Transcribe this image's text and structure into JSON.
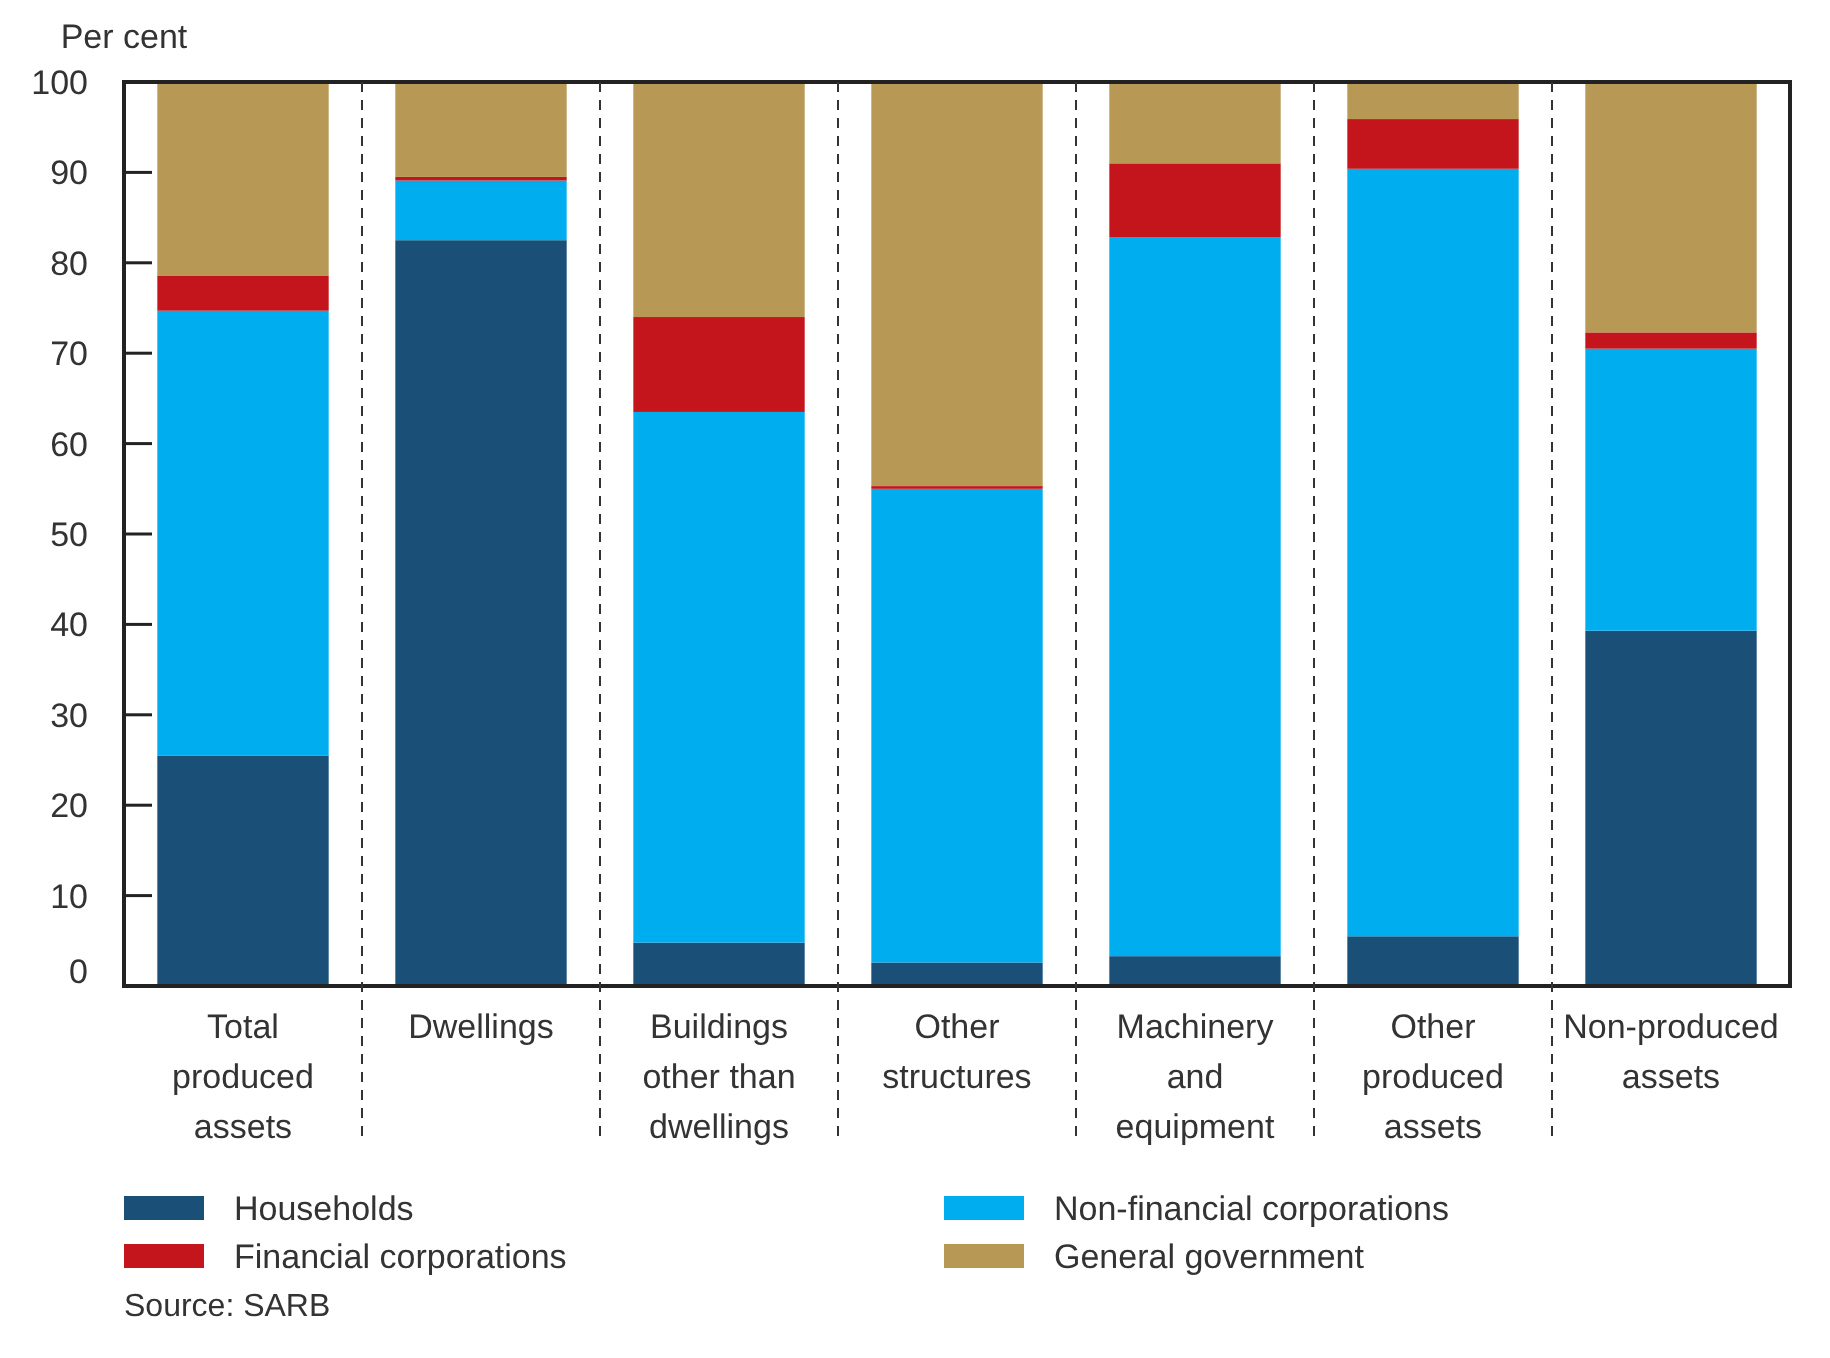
{
  "chart_data": {
    "type": "bar",
    "stacked": true,
    "ylabel": "Per cent",
    "categories": [
      "Total produced assets",
      "Dwellings",
      "Buildings other than dwellings",
      "Other structures",
      "Machinery and equipment",
      "Other produced assets",
      "Non-produced assets"
    ],
    "series": [
      {
        "name": "Households",
        "color": "#1a4f78",
        "values": [
          25.5,
          82.5,
          4.8,
          2.6,
          3.3,
          5.5,
          39.3
        ]
      },
      {
        "name": "Non-financial corporations",
        "color": "#00aeef",
        "values": [
          49.2,
          6.6,
          58.7,
          52.4,
          79.5,
          84.9,
          31.2
        ]
      },
      {
        "name": "Financial corporations",
        "color": "#c4151c",
        "values": [
          3.9,
          0.4,
          10.5,
          0.3,
          8.2,
          5.5,
          1.8
        ]
      },
      {
        "name": "General government",
        "color": "#b79855",
        "values": [
          21.4,
          10.5,
          26.0,
          44.7,
          9.0,
          4.1,
          27.7
        ]
      }
    ],
    "ylim": [
      0,
      100
    ],
    "yticks": [
      0,
      10,
      20,
      30,
      40,
      50,
      60,
      70,
      80,
      90,
      100
    ],
    "legend": "bottom",
    "annotations": [
      "Source: SARB"
    ]
  }
}
